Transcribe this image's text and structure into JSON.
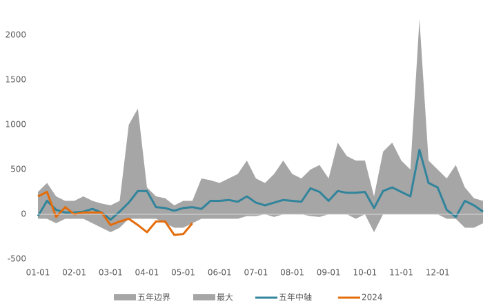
{
  "chart_data": {
    "type": "area-line",
    "categories": [
      "01-01",
      null,
      null,
      null,
      "02-01",
      null,
      null,
      null,
      "03-01",
      null,
      null,
      null,
      "04-01",
      null,
      null,
      null,
      "05-01",
      null,
      null,
      null,
      "06-01",
      null,
      null,
      null,
      "07-01",
      null,
      null,
      null,
      "08-01",
      null,
      null,
      null,
      "09-01",
      null,
      null,
      null,
      "10-01",
      null,
      null,
      null,
      "11-01",
      null,
      null,
      null,
      "12-01",
      null,
      null,
      null,
      null,
      null
    ],
    "ylim": [
      -500,
      2200
    ],
    "yticks": [
      -500,
      0,
      500,
      1000,
      1500,
      2000
    ],
    "series": [
      {
        "name": "五年边界",
        "kind": "area",
        "color": "#a6a6a6",
        "values": [
          -50,
          -50,
          -100,
          -50,
          -50,
          -50,
          -100,
          -150,
          -200,
          -150,
          -50,
          -50,
          -50,
          -50,
          -100,
          -150,
          -150,
          -100,
          -50,
          -50,
          -50,
          -50,
          -50,
          -20,
          -20,
          0,
          -30,
          0,
          0,
          0,
          -20,
          -30,
          0,
          0,
          0,
          -50,
          0,
          -200,
          0,
          0,
          0,
          0,
          0,
          0,
          0,
          -50,
          -50,
          -150,
          -150,
          -100
        ]
      },
      {
        "name": "最大",
        "kind": "area",
        "color": "#a6a6a6",
        "values": [
          250,
          350,
          200,
          150,
          150,
          200,
          150,
          120,
          100,
          150,
          1000,
          1180,
          300,
          200,
          180,
          100,
          150,
          150,
          400,
          380,
          350,
          400,
          450,
          600,
          400,
          350,
          450,
          600,
          450,
          400,
          500,
          550,
          400,
          800,
          650,
          600,
          600,
          200,
          700,
          800,
          600,
          500,
          2180,
          600,
          500,
          400,
          550,
          300,
          180,
          150
        ]
      },
      {
        "name": "五年中轴",
        "kind": "line",
        "color": "#31849b",
        "values": [
          -20,
          150,
          50,
          20,
          20,
          30,
          60,
          20,
          -60,
          30,
          130,
          260,
          260,
          80,
          70,
          40,
          70,
          80,
          60,
          150,
          150,
          160,
          140,
          200,
          130,
          100,
          130,
          160,
          150,
          140,
          290,
          250,
          150,
          260,
          240,
          240,
          250,
          70,
          260,
          300,
          250,
          200,
          720,
          350,
          300,
          50,
          -30,
          150,
          100,
          30
        ]
      },
      {
        "name": "2024",
        "kind": "line",
        "color": "#e46c0a",
        "values": [
          200,
          250,
          -30,
          80,
          0,
          20,
          20,
          20,
          -120,
          -80,
          -50,
          -120,
          -200,
          -80,
          -80,
          -230,
          -220,
          -100,
          null,
          null,
          null,
          null,
          null,
          null,
          null,
          null,
          null,
          null,
          null,
          null,
          null,
          null,
          null,
          null,
          null,
          null,
          null,
          null,
          null,
          null,
          null,
          null,
          null,
          null,
          null,
          null,
          null,
          null,
          null,
          null
        ]
      }
    ]
  }
}
